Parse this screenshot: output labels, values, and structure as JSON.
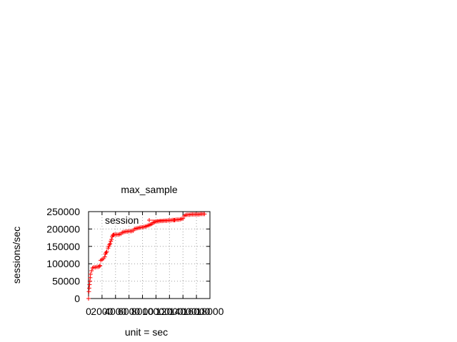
{
  "chart_data": {
    "type": "scatter",
    "title": "max_sample",
    "xlabel": "unit = sec",
    "ylabel": "sessions/sec",
    "xlim": [
      0,
      18000
    ],
    "ylim": [
      0,
      250000
    ],
    "x_ticks": [
      0,
      2000,
      4000,
      6000,
      8000,
      10000,
      12000,
      14000,
      16000,
      18000
    ],
    "x_tick_labels": [
      "0",
      "2000",
      "4000",
      "6000",
      "8000",
      "10000",
      "12000",
      "14000",
      "16000",
      "18000"
    ],
    "y_ticks": [
      0,
      50000,
      100000,
      150000,
      200000,
      250000
    ],
    "y_tick_labels": [
      "0",
      "50000",
      "100000",
      "150000",
      "200000",
      "250000"
    ],
    "grid": true,
    "legend_position": "top-left",
    "colors": {
      "series": "#ff0000",
      "grid": "#a0a0a0",
      "axis": "#000000"
    },
    "series": [
      {
        "name": "session",
        "marker": "plus",
        "points": [
          [
            0,
            0
          ],
          [
            50,
            20000
          ],
          [
            100,
            30000
          ],
          [
            150,
            40000
          ],
          [
            200,
            50000
          ],
          [
            250,
            60000
          ],
          [
            300,
            70000
          ],
          [
            450,
            80000
          ],
          [
            600,
            88000
          ],
          [
            800,
            90000
          ],
          [
            1000,
            90000
          ],
          [
            1200,
            91000
          ],
          [
            1400,
            91000
          ],
          [
            1600,
            92000
          ],
          [
            1700,
            95000
          ],
          [
            1800,
            110000
          ],
          [
            2000,
            112000
          ],
          [
            2200,
            115000
          ],
          [
            2400,
            120000
          ],
          [
            2500,
            128000
          ],
          [
            2600,
            132000
          ],
          [
            2700,
            135000
          ],
          [
            2900,
            145000
          ],
          [
            3000,
            150000
          ],
          [
            3100,
            155000
          ],
          [
            3200,
            158000
          ],
          [
            3300,
            165000
          ],
          [
            3400,
            170000
          ],
          [
            3500,
            178000
          ],
          [
            3600,
            182000
          ],
          [
            3700,
            183000
          ],
          [
            3800,
            184000
          ],
          [
            4000,
            184000
          ],
          [
            4200,
            184000
          ],
          [
            4400,
            184000
          ],
          [
            4600,
            185000
          ],
          [
            4800,
            186000
          ],
          [
            5000,
            190000
          ],
          [
            5200,
            191000
          ],
          [
            5400,
            192000
          ],
          [
            5600,
            193000
          ],
          [
            5800,
            193000
          ],
          [
            6000,
            194000
          ],
          [
            6200,
            194000
          ],
          [
            6400,
            194000
          ],
          [
            6600,
            195000
          ],
          [
            6800,
            200000
          ],
          [
            7000,
            201000
          ],
          [
            7200,
            202000
          ],
          [
            7400,
            203000
          ],
          [
            7600,
            204000
          ],
          [
            7800,
            205000
          ],
          [
            8000,
            205000
          ],
          [
            8200,
            206000
          ],
          [
            8400,
            207000
          ],
          [
            8600,
            208000
          ],
          [
            8800,
            210000
          ],
          [
            9000,
            211000
          ],
          [
            9200,
            213000
          ],
          [
            9400,
            215000
          ],
          [
            9600,
            218000
          ],
          [
            9800,
            220000
          ],
          [
            10000,
            221000
          ],
          [
            10200,
            222000
          ],
          [
            10400,
            222000
          ],
          [
            10600,
            223000
          ],
          [
            10800,
            223000
          ],
          [
            11000,
            223000
          ],
          [
            11200,
            224000
          ],
          [
            11400,
            224000
          ],
          [
            11600,
            224000
          ],
          [
            11800,
            225000
          ],
          [
            12000,
            225000
          ],
          [
            12200,
            225000
          ],
          [
            12400,
            226000
          ],
          [
            12600,
            226000
          ],
          [
            12800,
            226000
          ],
          [
            13000,
            227000
          ],
          [
            13200,
            227000
          ],
          [
            13400,
            227000
          ],
          [
            13600,
            228000
          ],
          [
            13800,
            229000
          ],
          [
            14000,
            230000
          ],
          [
            14200,
            238000
          ],
          [
            14400,
            240000
          ],
          [
            14600,
            241000
          ],
          [
            14800,
            241000
          ],
          [
            15000,
            241000
          ],
          [
            15200,
            242000
          ],
          [
            15400,
            242000
          ],
          [
            15600,
            242000
          ],
          [
            15800,
            242000
          ],
          [
            16000,
            242000
          ],
          [
            16200,
            242000
          ],
          [
            16400,
            242000
          ],
          [
            16600,
            243000
          ],
          [
            16800,
            243000
          ],
          [
            17000,
            243000
          ],
          [
            17200,
            243000
          ]
        ]
      }
    ]
  }
}
